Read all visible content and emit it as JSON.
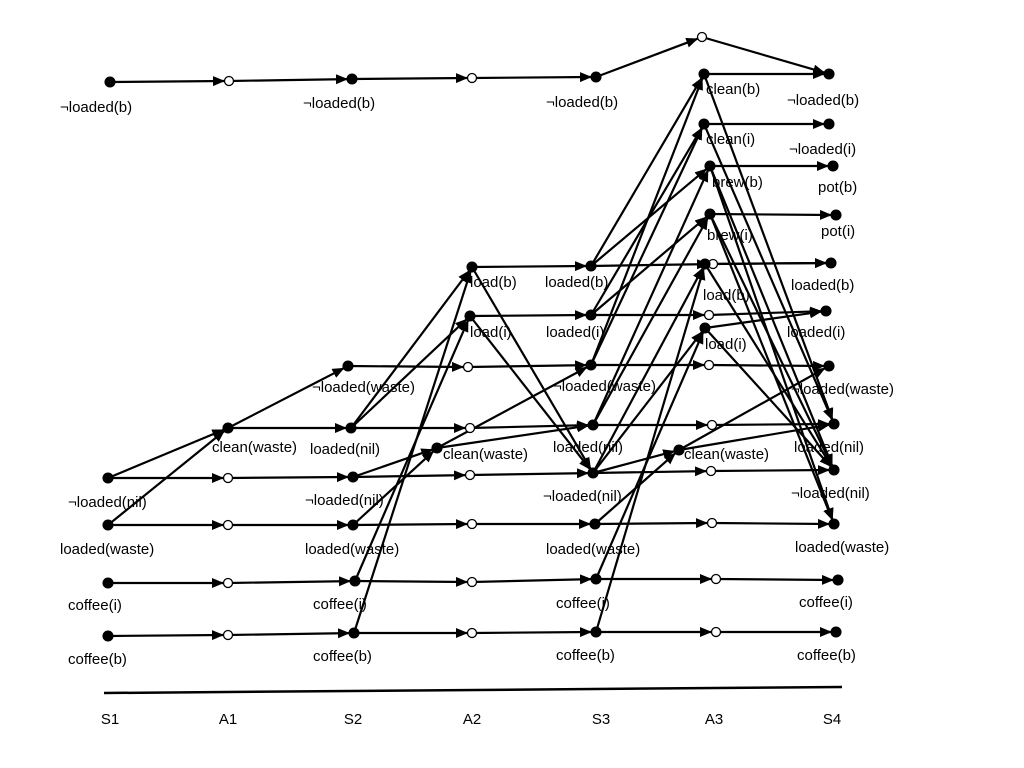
{
  "diagram": {
    "columns": [
      "S1",
      "A1",
      "S2",
      "A2",
      "S3",
      "A3",
      "S4"
    ],
    "nodes": [
      {
        "id": "s1_notloaded_b",
        "label": "¬loaded(b)",
        "type": "filled",
        "name": "node-s1-not-loaded-b"
      },
      {
        "id": "s1_notloaded_nil",
        "label": "¬loaded(nil)",
        "type": "filled",
        "name": "node-s1-not-loaded-nil"
      },
      {
        "id": "s1_loaded_waste",
        "label": "loaded(waste)",
        "type": "filled",
        "name": "node-s1-loaded-waste"
      },
      {
        "id": "s1_coffee_i",
        "label": "coffee(i)",
        "type": "filled",
        "name": "node-s1-coffee-i"
      },
      {
        "id": "s1_coffee_b",
        "label": "coffee(b)",
        "type": "filled",
        "name": "node-s1-coffee-b"
      },
      {
        "id": "a1_noop_notloaded_b",
        "label": "",
        "type": "open",
        "name": "node-a1-noop-not-loaded-b"
      },
      {
        "id": "a1_clean_waste",
        "label": "clean(waste)",
        "type": "filled",
        "name": "node-a1-clean-waste"
      },
      {
        "id": "a1_noop_notloaded_nil",
        "label": "",
        "type": "open",
        "name": "node-a1-noop-not-loaded-nil"
      },
      {
        "id": "a1_noop_loaded_waste",
        "label": "",
        "type": "open",
        "name": "node-a1-noop-loaded-waste"
      },
      {
        "id": "a1_noop_coffee_i",
        "label": "",
        "type": "open",
        "name": "node-a1-noop-coffee-i"
      },
      {
        "id": "a1_noop_coffee_b",
        "label": "",
        "type": "open",
        "name": "node-a1-noop-coffee-b"
      },
      {
        "id": "s2_notloaded_b",
        "label": "¬loaded(b)",
        "type": "filled",
        "name": "node-s2-not-loaded-b"
      },
      {
        "id": "s2_notloaded_waste",
        "label": "¬loaded(waste)",
        "type": "filled",
        "name": "node-s2-not-loaded-waste"
      },
      {
        "id": "s2_loaded_nil",
        "label": "loaded(nil)",
        "type": "filled",
        "name": "node-s2-loaded-nil"
      },
      {
        "id": "s2_notloaded_nil",
        "label": "¬loaded(nil)",
        "type": "filled",
        "name": "node-s2-not-loaded-nil"
      },
      {
        "id": "s2_loaded_waste",
        "label": "loaded(waste)",
        "type": "filled",
        "name": "node-s2-loaded-waste"
      },
      {
        "id": "s2_coffee_i",
        "label": "coffee(i)",
        "type": "filled",
        "name": "node-s2-coffee-i"
      },
      {
        "id": "s2_coffee_b",
        "label": "coffee(b)",
        "type": "filled",
        "name": "node-s2-coffee-b"
      },
      {
        "id": "a2_noop_notloaded_b",
        "label": "",
        "type": "open",
        "name": "node-a2-noop-not-loaded-b"
      },
      {
        "id": "a2_load_b",
        "label": "load(b)",
        "type": "filled",
        "name": "node-a2-load-b"
      },
      {
        "id": "a2_load_i",
        "label": "load(i)",
        "type": "filled",
        "name": "node-a2-load-i"
      },
      {
        "id": "a2_noop_notloaded_waste",
        "label": "",
        "type": "open",
        "name": "node-a2-noop-not-loaded-waste"
      },
      {
        "id": "a2_noop_loaded_nil",
        "label": "",
        "type": "open",
        "name": "node-a2-noop-loaded-nil"
      },
      {
        "id": "a2_clean_waste",
        "label": "clean(waste)",
        "type": "filled",
        "name": "node-a2-clean-waste"
      },
      {
        "id": "a2_noop_notloaded_nil",
        "label": "",
        "type": "open",
        "name": "node-a2-noop-not-loaded-nil"
      },
      {
        "id": "a2_noop_loaded_waste",
        "label": "",
        "type": "open",
        "name": "node-a2-noop-loaded-waste"
      },
      {
        "id": "a2_noop_coffee_i",
        "label": "",
        "type": "open",
        "name": "node-a2-noop-coffee-i"
      },
      {
        "id": "a2_noop_coffee_b",
        "label": "",
        "type": "open",
        "name": "node-a2-noop-coffee-b"
      },
      {
        "id": "s3_notloaded_b",
        "label": "¬loaded(b)",
        "type": "filled",
        "name": "node-s3-not-loaded-b"
      },
      {
        "id": "s3_loaded_b",
        "label": "loaded(b)",
        "type": "filled",
        "name": "node-s3-loaded-b"
      },
      {
        "id": "s3_loaded_i",
        "label": "loaded(i)",
        "type": "filled",
        "name": "node-s3-loaded-i"
      },
      {
        "id": "s3_notloaded_waste",
        "label": "¬loaded(waste)",
        "type": "filled",
        "name": "node-s3-not-loaded-waste"
      },
      {
        "id": "s3_loaded_nil",
        "label": "loaded(nil)",
        "type": "filled",
        "name": "node-s3-loaded-nil"
      },
      {
        "id": "s3_notloaded_nil",
        "label": "¬loaded(nil)",
        "type": "filled",
        "name": "node-s3-not-loaded-nil"
      },
      {
        "id": "s3_loaded_waste",
        "label": "loaded(waste)",
        "type": "filled",
        "name": "node-s3-loaded-waste"
      },
      {
        "id": "s3_coffee_i",
        "label": "coffee(i)",
        "type": "filled",
        "name": "node-s3-coffee-i"
      },
      {
        "id": "s3_coffee_b",
        "label": "coffee(b)",
        "type": "filled",
        "name": "node-s3-coffee-b"
      },
      {
        "id": "a3_noop_notloaded_b",
        "label": "",
        "type": "open",
        "name": "node-a3-noop-not-loaded-b"
      },
      {
        "id": "a3_clean_b",
        "label": "clean(b)",
        "type": "filled",
        "name": "node-a3-clean-b"
      },
      {
        "id": "a3_clean_i",
        "label": "clean(i)",
        "type": "filled",
        "name": "node-a3-clean-i"
      },
      {
        "id": "a3_brew_b",
        "label": "brew(b)",
        "type": "filled",
        "name": "node-a3-brew-b"
      },
      {
        "id": "a3_brew_i",
        "label": "brew(i)",
        "type": "filled",
        "name": "node-a3-brew-i"
      },
      {
        "id": "a3_noop_loaded_b",
        "label": "",
        "type": "open",
        "name": "node-a3-noop-loaded-b"
      },
      {
        "id": "a3_load_b",
        "label": "load(b)",
        "type": "filled",
        "name": "node-a3-load-b"
      },
      {
        "id": "a3_noop_loaded_i",
        "label": "",
        "type": "open",
        "name": "node-a3-noop-loaded-i"
      },
      {
        "id": "a3_load_i",
        "label": "load(i)",
        "type": "filled",
        "name": "node-a3-load-i"
      },
      {
        "id": "a3_noop_notloaded_waste",
        "label": "",
        "type": "open",
        "name": "node-a3-noop-not-loaded-waste"
      },
      {
        "id": "a3_noop_loaded_nil",
        "label": "",
        "type": "open",
        "name": "node-a3-noop-loaded-nil"
      },
      {
        "id": "a3_clean_waste",
        "label": "clean(waste)",
        "type": "filled",
        "name": "node-a3-clean-waste"
      },
      {
        "id": "a3_noop_notloaded_nil",
        "label": "",
        "type": "open",
        "name": "node-a3-noop-not-loaded-nil"
      },
      {
        "id": "a3_noop_loaded_waste",
        "label": "",
        "type": "open",
        "name": "node-a3-noop-loaded-waste"
      },
      {
        "id": "a3_noop_coffee_i",
        "label": "",
        "type": "open",
        "name": "node-a3-noop-coffee-i"
      },
      {
        "id": "a3_noop_coffee_b",
        "label": "",
        "type": "open",
        "name": "node-a3-noop-coffee-b"
      },
      {
        "id": "s4_notloaded_b",
        "label": "¬loaded(b)",
        "type": "filled",
        "name": "node-s4-not-loaded-b"
      },
      {
        "id": "s4_notloaded_i",
        "label": "¬loaded(i)",
        "type": "filled",
        "name": "node-s4-not-loaded-i"
      },
      {
        "id": "s4_pot_b",
        "label": "pot(b)",
        "type": "filled",
        "name": "node-s4-pot-b"
      },
      {
        "id": "s4_pot_i",
        "label": "pot(i)",
        "type": "filled",
        "name": "node-s4-pot-i"
      },
      {
        "id": "s4_loaded_b",
        "label": "loaded(b)",
        "type": "filled",
        "name": "node-s4-loaded-b"
      },
      {
        "id": "s4_loaded_i",
        "label": "loaded(i)",
        "type": "filled",
        "name": "node-s4-loaded-i"
      },
      {
        "id": "s4_notloaded_waste",
        "label": "¬loaded(waste)",
        "type": "filled",
        "name": "node-s4-not-loaded-waste"
      },
      {
        "id": "s4_loaded_nil",
        "label": "loaded(nil)",
        "type": "filled",
        "name": "node-s4-loaded-nil"
      },
      {
        "id": "s4_notloaded_nil",
        "label": "¬loaded(nil)",
        "type": "filled",
        "name": "node-s4-not-loaded-nil"
      },
      {
        "id": "s4_loaded_waste",
        "label": "loaded(waste)",
        "type": "filled",
        "name": "node-s4-loaded-waste"
      },
      {
        "id": "s4_coffee_i",
        "label": "coffee(i)",
        "type": "filled",
        "name": "node-s4-coffee-i"
      },
      {
        "id": "s4_coffee_b",
        "label": "coffee(b)",
        "type": "filled",
        "name": "node-s4-coffee-b"
      }
    ],
    "edges": [
      [
        "s1_notloaded_b",
        "a1_noop_notloaded_b"
      ],
      [
        "a1_noop_notloaded_b",
        "s2_notloaded_b"
      ],
      [
        "s1_notloaded_nil",
        "a1_clean_waste"
      ],
      [
        "s1_loaded_waste",
        "a1_clean_waste"
      ],
      [
        "s1_notloaded_nil",
        "a1_noop_notloaded_nil"
      ],
      [
        "s1_loaded_waste",
        "a1_noop_loaded_waste"
      ],
      [
        "s1_coffee_i",
        "a1_noop_coffee_i"
      ],
      [
        "s1_coffee_b",
        "a1_noop_coffee_b"
      ],
      [
        "a1_clean_waste",
        "s2_notloaded_waste"
      ],
      [
        "a1_clean_waste",
        "s2_loaded_nil"
      ],
      [
        "a1_noop_notloaded_nil",
        "s2_notloaded_nil"
      ],
      [
        "a1_noop_loaded_waste",
        "s2_loaded_waste"
      ],
      [
        "a1_noop_coffee_i",
        "s2_coffee_i"
      ],
      [
        "a1_noop_coffee_b",
        "s2_coffee_b"
      ],
      [
        "s2_notloaded_b",
        "a2_noop_notloaded_b"
      ],
      [
        "s2_loaded_nil",
        "a2_load_b"
      ],
      [
        "s2_coffee_b",
        "a2_load_b"
      ],
      [
        "s2_loaded_nil",
        "a2_load_i"
      ],
      [
        "s2_coffee_i",
        "a2_load_i"
      ],
      [
        "s2_notloaded_waste",
        "a2_noop_notloaded_waste"
      ],
      [
        "s2_loaded_nil",
        "a2_noop_loaded_nil"
      ],
      [
        "s2_notloaded_nil",
        "a2_clean_waste"
      ],
      [
        "s2_loaded_waste",
        "a2_clean_waste"
      ],
      [
        "s2_notloaded_nil",
        "a2_noop_notloaded_nil"
      ],
      [
        "s2_loaded_waste",
        "a2_noop_loaded_waste"
      ],
      [
        "s2_coffee_i",
        "a2_noop_coffee_i"
      ],
      [
        "s2_coffee_b",
        "a2_noop_coffee_b"
      ],
      [
        "a2_noop_notloaded_b",
        "s3_notloaded_b"
      ],
      [
        "a2_load_b",
        "s3_loaded_b"
      ],
      [
        "a2_load_b",
        "s3_notloaded_nil"
      ],
      [
        "a2_load_i",
        "s3_loaded_i"
      ],
      [
        "a2_load_i",
        "s3_notloaded_nil"
      ],
      [
        "a2_noop_notloaded_waste",
        "s3_notloaded_waste"
      ],
      [
        "a2_noop_loaded_nil",
        "s3_loaded_nil"
      ],
      [
        "a2_clean_waste",
        "s3_notloaded_waste"
      ],
      [
        "a2_clean_waste",
        "s3_loaded_nil"
      ],
      [
        "a2_noop_notloaded_nil",
        "s3_notloaded_nil"
      ],
      [
        "a2_noop_loaded_waste",
        "s3_loaded_waste"
      ],
      [
        "a2_noop_coffee_i",
        "s3_coffee_i"
      ],
      [
        "a2_noop_coffee_b",
        "s3_coffee_b"
      ],
      [
        "s3_notloaded_b",
        "a3_noop_notloaded_b"
      ],
      [
        "s3_loaded_b",
        "a3_clean_b"
      ],
      [
        "s3_loaded_i",
        "a3_clean_i"
      ],
      [
        "s3_loaded_b",
        "a3_brew_b"
      ],
      [
        "s3_loaded_i",
        "a3_brew_i"
      ],
      [
        "s3_notloaded_waste",
        "a3_clean_b"
      ],
      [
        "s3_notloaded_waste",
        "a3_clean_i"
      ],
      [
        "s3_loaded_nil",
        "a3_brew_b"
      ],
      [
        "s3_loaded_nil",
        "a3_brew_i"
      ],
      [
        "s3_notloaded_nil",
        "a3_load_b"
      ],
      [
        "s3_notloaded_nil",
        "a3_load_i"
      ],
      [
        "s3_coffee_b",
        "a3_load_b"
      ],
      [
        "s3_coffee_i",
        "a3_load_i"
      ],
      [
        "s3_loaded_b",
        "a3_noop_loaded_b"
      ],
      [
        "s3_loaded_i",
        "a3_noop_loaded_i"
      ],
      [
        "s3_notloaded_waste",
        "a3_noop_notloaded_waste"
      ],
      [
        "s3_loaded_nil",
        "a3_noop_loaded_nil"
      ],
      [
        "s3_notloaded_nil",
        "a3_clean_waste"
      ],
      [
        "s3_loaded_waste",
        "a3_clean_waste"
      ],
      [
        "s3_notloaded_nil",
        "a3_noop_notloaded_nil"
      ],
      [
        "s3_loaded_waste",
        "a3_noop_loaded_waste"
      ],
      [
        "s3_coffee_i",
        "a3_noop_coffee_i"
      ],
      [
        "s3_coffee_b",
        "a3_noop_coffee_b"
      ],
      [
        "a3_noop_notloaded_b",
        "s4_notloaded_b"
      ],
      [
        "a3_clean_b",
        "s4_notloaded_b"
      ],
      [
        "a3_clean_b",
        "s4_loaded_nil"
      ],
      [
        "a3_clean_i",
        "s4_notloaded_i"
      ],
      [
        "a3_clean_i",
        "s4_loaded_nil"
      ],
      [
        "a3_brew_b",
        "s4_pot_b"
      ],
      [
        "a3_brew_b",
        "s4_loaded_waste"
      ],
      [
        "a3_brew_b",
        "s4_notloaded_nil"
      ],
      [
        "a3_brew_i",
        "s4_pot_i"
      ],
      [
        "a3_brew_i",
        "s4_loaded_waste"
      ],
      [
        "a3_brew_i",
        "s4_notloaded_nil"
      ],
      [
        "a3_load_b",
        "s4_loaded_b"
      ],
      [
        "a3_load_b",
        "s4_notloaded_nil"
      ],
      [
        "a3_load_i",
        "s4_loaded_i"
      ],
      [
        "a3_load_i",
        "s4_notloaded_nil"
      ],
      [
        "a3_clean_waste",
        "s4_notloaded_waste"
      ],
      [
        "a3_clean_waste",
        "s4_loaded_nil"
      ],
      [
        "a3_noop_loaded_b",
        "s4_loaded_b"
      ],
      [
        "a3_noop_loaded_i",
        "s4_loaded_i"
      ],
      [
        "a3_noop_notloaded_waste",
        "s4_notloaded_waste"
      ],
      [
        "a3_noop_loaded_nil",
        "s4_loaded_nil"
      ],
      [
        "a3_noop_notloaded_nil",
        "s4_notloaded_nil"
      ],
      [
        "a3_noop_loaded_waste",
        "s4_loaded_waste"
      ],
      [
        "a3_noop_coffee_i",
        "s4_coffee_i"
      ],
      [
        "a3_noop_coffee_b",
        "s4_coffee_b"
      ]
    ]
  }
}
